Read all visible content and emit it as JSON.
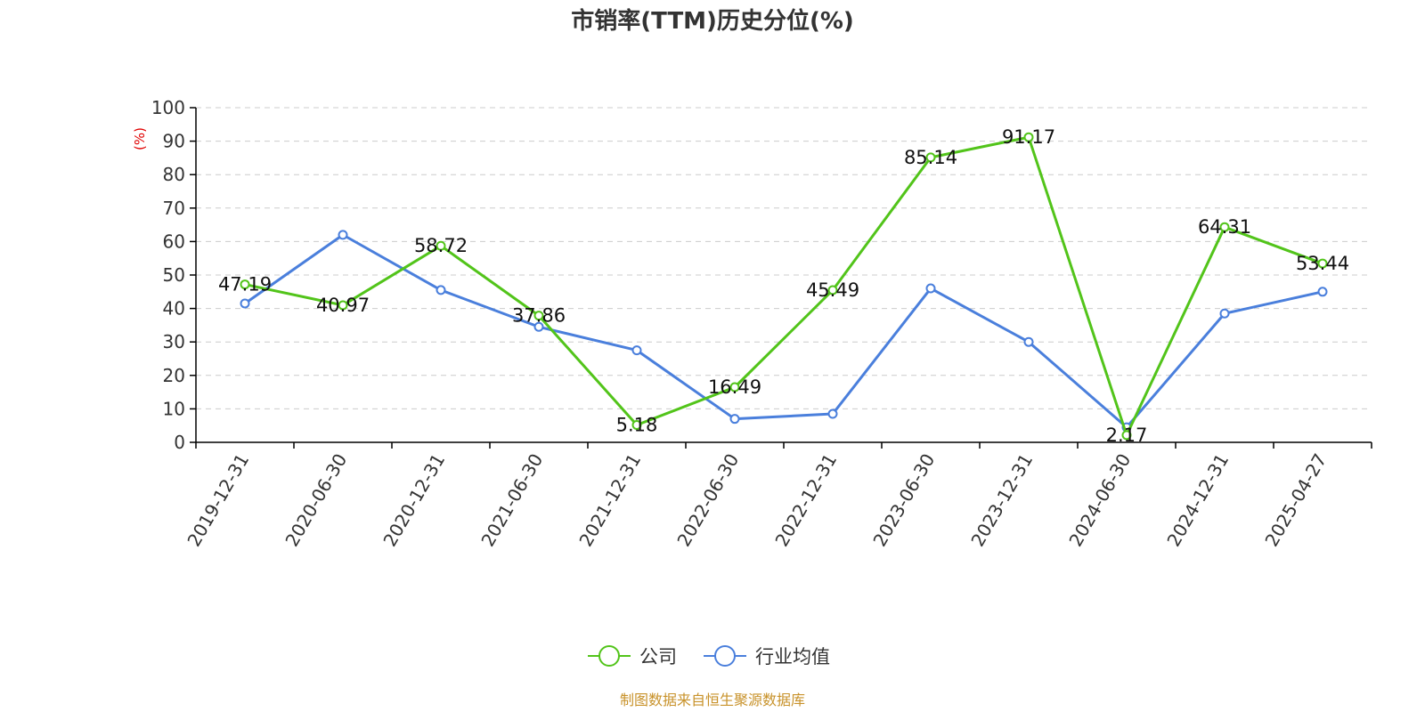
{
  "chart_data": {
    "type": "line",
    "title": "市销率(TTM)历史分位(%)",
    "ylabel": "(%)",
    "xlabel": "",
    "ylim": [
      0,
      100
    ],
    "yticks": [
      0,
      10,
      20,
      30,
      40,
      50,
      60,
      70,
      80,
      90,
      100
    ],
    "categories": [
      "2019-12-31",
      "2020-06-30",
      "2020-12-31",
      "2021-06-30",
      "2021-12-31",
      "2022-06-30",
      "2022-12-31",
      "2023-06-30",
      "2023-12-31",
      "2024-06-30",
      "2024-12-31",
      "2025-04-27"
    ],
    "grid": true,
    "legend_position": "bottom-center",
    "series": [
      {
        "name": "公司",
        "color": "#52c41a",
        "values": [
          47.19,
          40.97,
          58.72,
          37.86,
          5.18,
          16.49,
          45.49,
          85.14,
          91.17,
          2.17,
          64.31,
          53.44
        ],
        "labels": [
          "47.19",
          "40.97",
          "58.72",
          "37.86",
          "5.18",
          "16.49",
          "45.49",
          "85.14",
          "91.17",
          "2.17",
          "64.31",
          "53.44"
        ]
      },
      {
        "name": "行业均值",
        "color": "#4a7fdc",
        "values": [
          41.5,
          62.0,
          45.5,
          34.5,
          27.5,
          7.0,
          8.5,
          46.0,
          30.0,
          4.5,
          38.5,
          45.0
        ]
      }
    ]
  },
  "footer": {
    "source": "制图数据来自恒生聚源数据库"
  }
}
